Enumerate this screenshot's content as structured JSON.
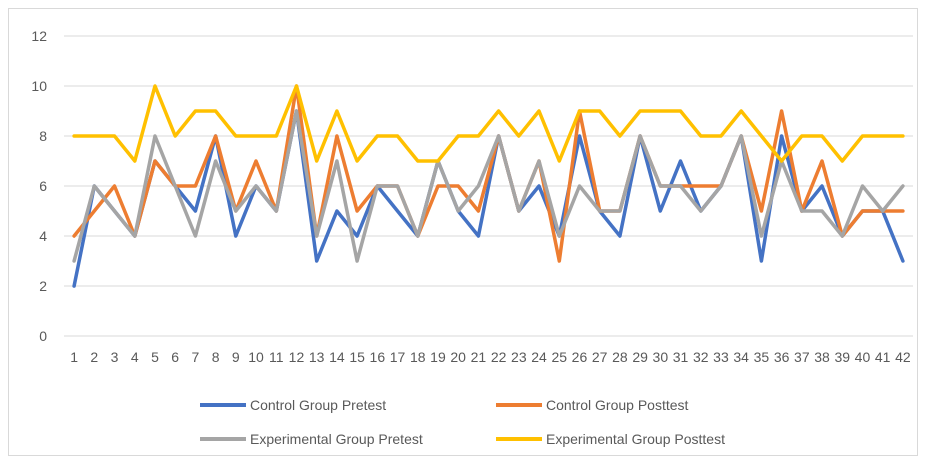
{
  "chart_data": {
    "type": "line",
    "title": "",
    "xlabel": "",
    "ylabel": "",
    "ylim": [
      0,
      12
    ],
    "yticks": [
      0,
      2,
      4,
      6,
      8,
      10,
      12
    ],
    "x": [
      1,
      2,
      3,
      4,
      5,
      6,
      7,
      8,
      9,
      10,
      11,
      12,
      13,
      14,
      15,
      16,
      17,
      18,
      19,
      20,
      21,
      22,
      23,
      24,
      25,
      26,
      27,
      28,
      29,
      30,
      31,
      32,
      33,
      34,
      35,
      36,
      37,
      38,
      39,
      40,
      41,
      42
    ],
    "grid": true,
    "legend_position": "bottom",
    "series": [
      {
        "name": "Control Group Pretest",
        "color": "#4472C4",
        "values": [
          2,
          6,
          5,
          4,
          7,
          6,
          5,
          8,
          4,
          6,
          5,
          9,
          3,
          5,
          4,
          6,
          5,
          4,
          7,
          5,
          4,
          8,
          5,
          6,
          4,
          8,
          5,
          4,
          8,
          5,
          7,
          5,
          6,
          8,
          3,
          8,
          5,
          6,
          4,
          5,
          5,
          3
        ]
      },
      {
        "name": "Control Group Posttest",
        "color": "#ED7D31",
        "values": [
          4,
          5,
          6,
          4,
          7,
          6,
          6,
          8,
          5,
          7,
          5,
          10,
          4,
          8,
          5,
          6,
          6,
          4,
          6,
          6,
          5,
          8,
          5,
          7,
          3,
          9,
          5,
          5,
          8,
          6,
          6,
          6,
          6,
          8,
          5,
          9,
          5,
          7,
          4,
          5,
          5,
          5
        ]
      },
      {
        "name": "Experimental Group Pretest",
        "color": "#A5A5A5",
        "values": [
          3,
          6,
          5,
          4,
          8,
          6,
          4,
          7,
          5,
          6,
          5,
          9,
          4,
          7,
          3,
          6,
          6,
          4,
          7,
          5,
          6,
          8,
          5,
          7,
          4,
          6,
          5,
          5,
          8,
          6,
          6,
          5,
          6,
          8,
          4,
          7,
          5,
          5,
          4,
          6,
          5,
          6
        ]
      },
      {
        "name": "Experimental Group Posttest",
        "color": "#FFC000",
        "values": [
          8,
          8,
          8,
          7,
          10,
          8,
          9,
          9,
          8,
          8,
          8,
          10,
          7,
          9,
          7,
          8,
          8,
          7,
          7,
          8,
          8,
          9,
          8,
          9,
          7,
          9,
          9,
          8,
          9,
          9,
          9,
          8,
          8,
          9,
          8,
          7,
          8,
          8,
          7,
          8,
          8,
          8
        ]
      }
    ]
  }
}
